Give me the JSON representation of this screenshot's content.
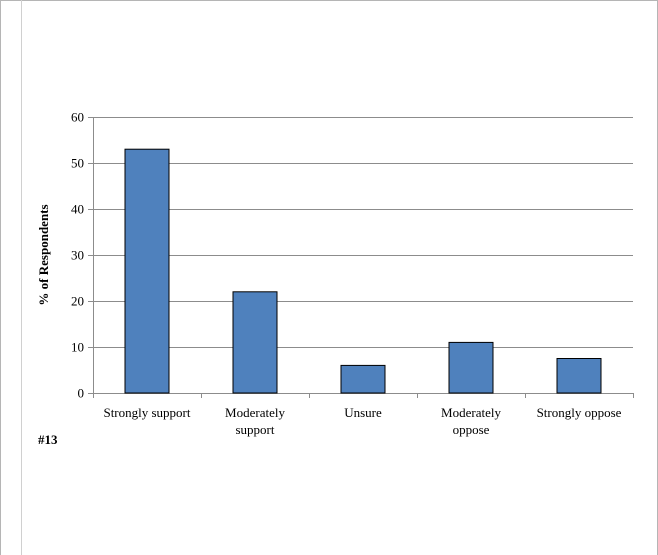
{
  "chart_data": {
    "type": "bar",
    "categories": [
      [
        "Strongly support"
      ],
      [
        "Moderately",
        "support"
      ],
      [
        "Unsure"
      ],
      [
        "Moderately",
        "oppose"
      ],
      [
        "Strongly oppose"
      ]
    ],
    "values": [
      53,
      22,
      6,
      11,
      7.5
    ],
    "ylabel": "% of Respondents",
    "ylim": [
      0,
      60
    ],
    "yticks": [
      0,
      10,
      20,
      30,
      40,
      50,
      60
    ],
    "grid": true,
    "bar_color": "#4f81bd"
  },
  "note": "#13"
}
